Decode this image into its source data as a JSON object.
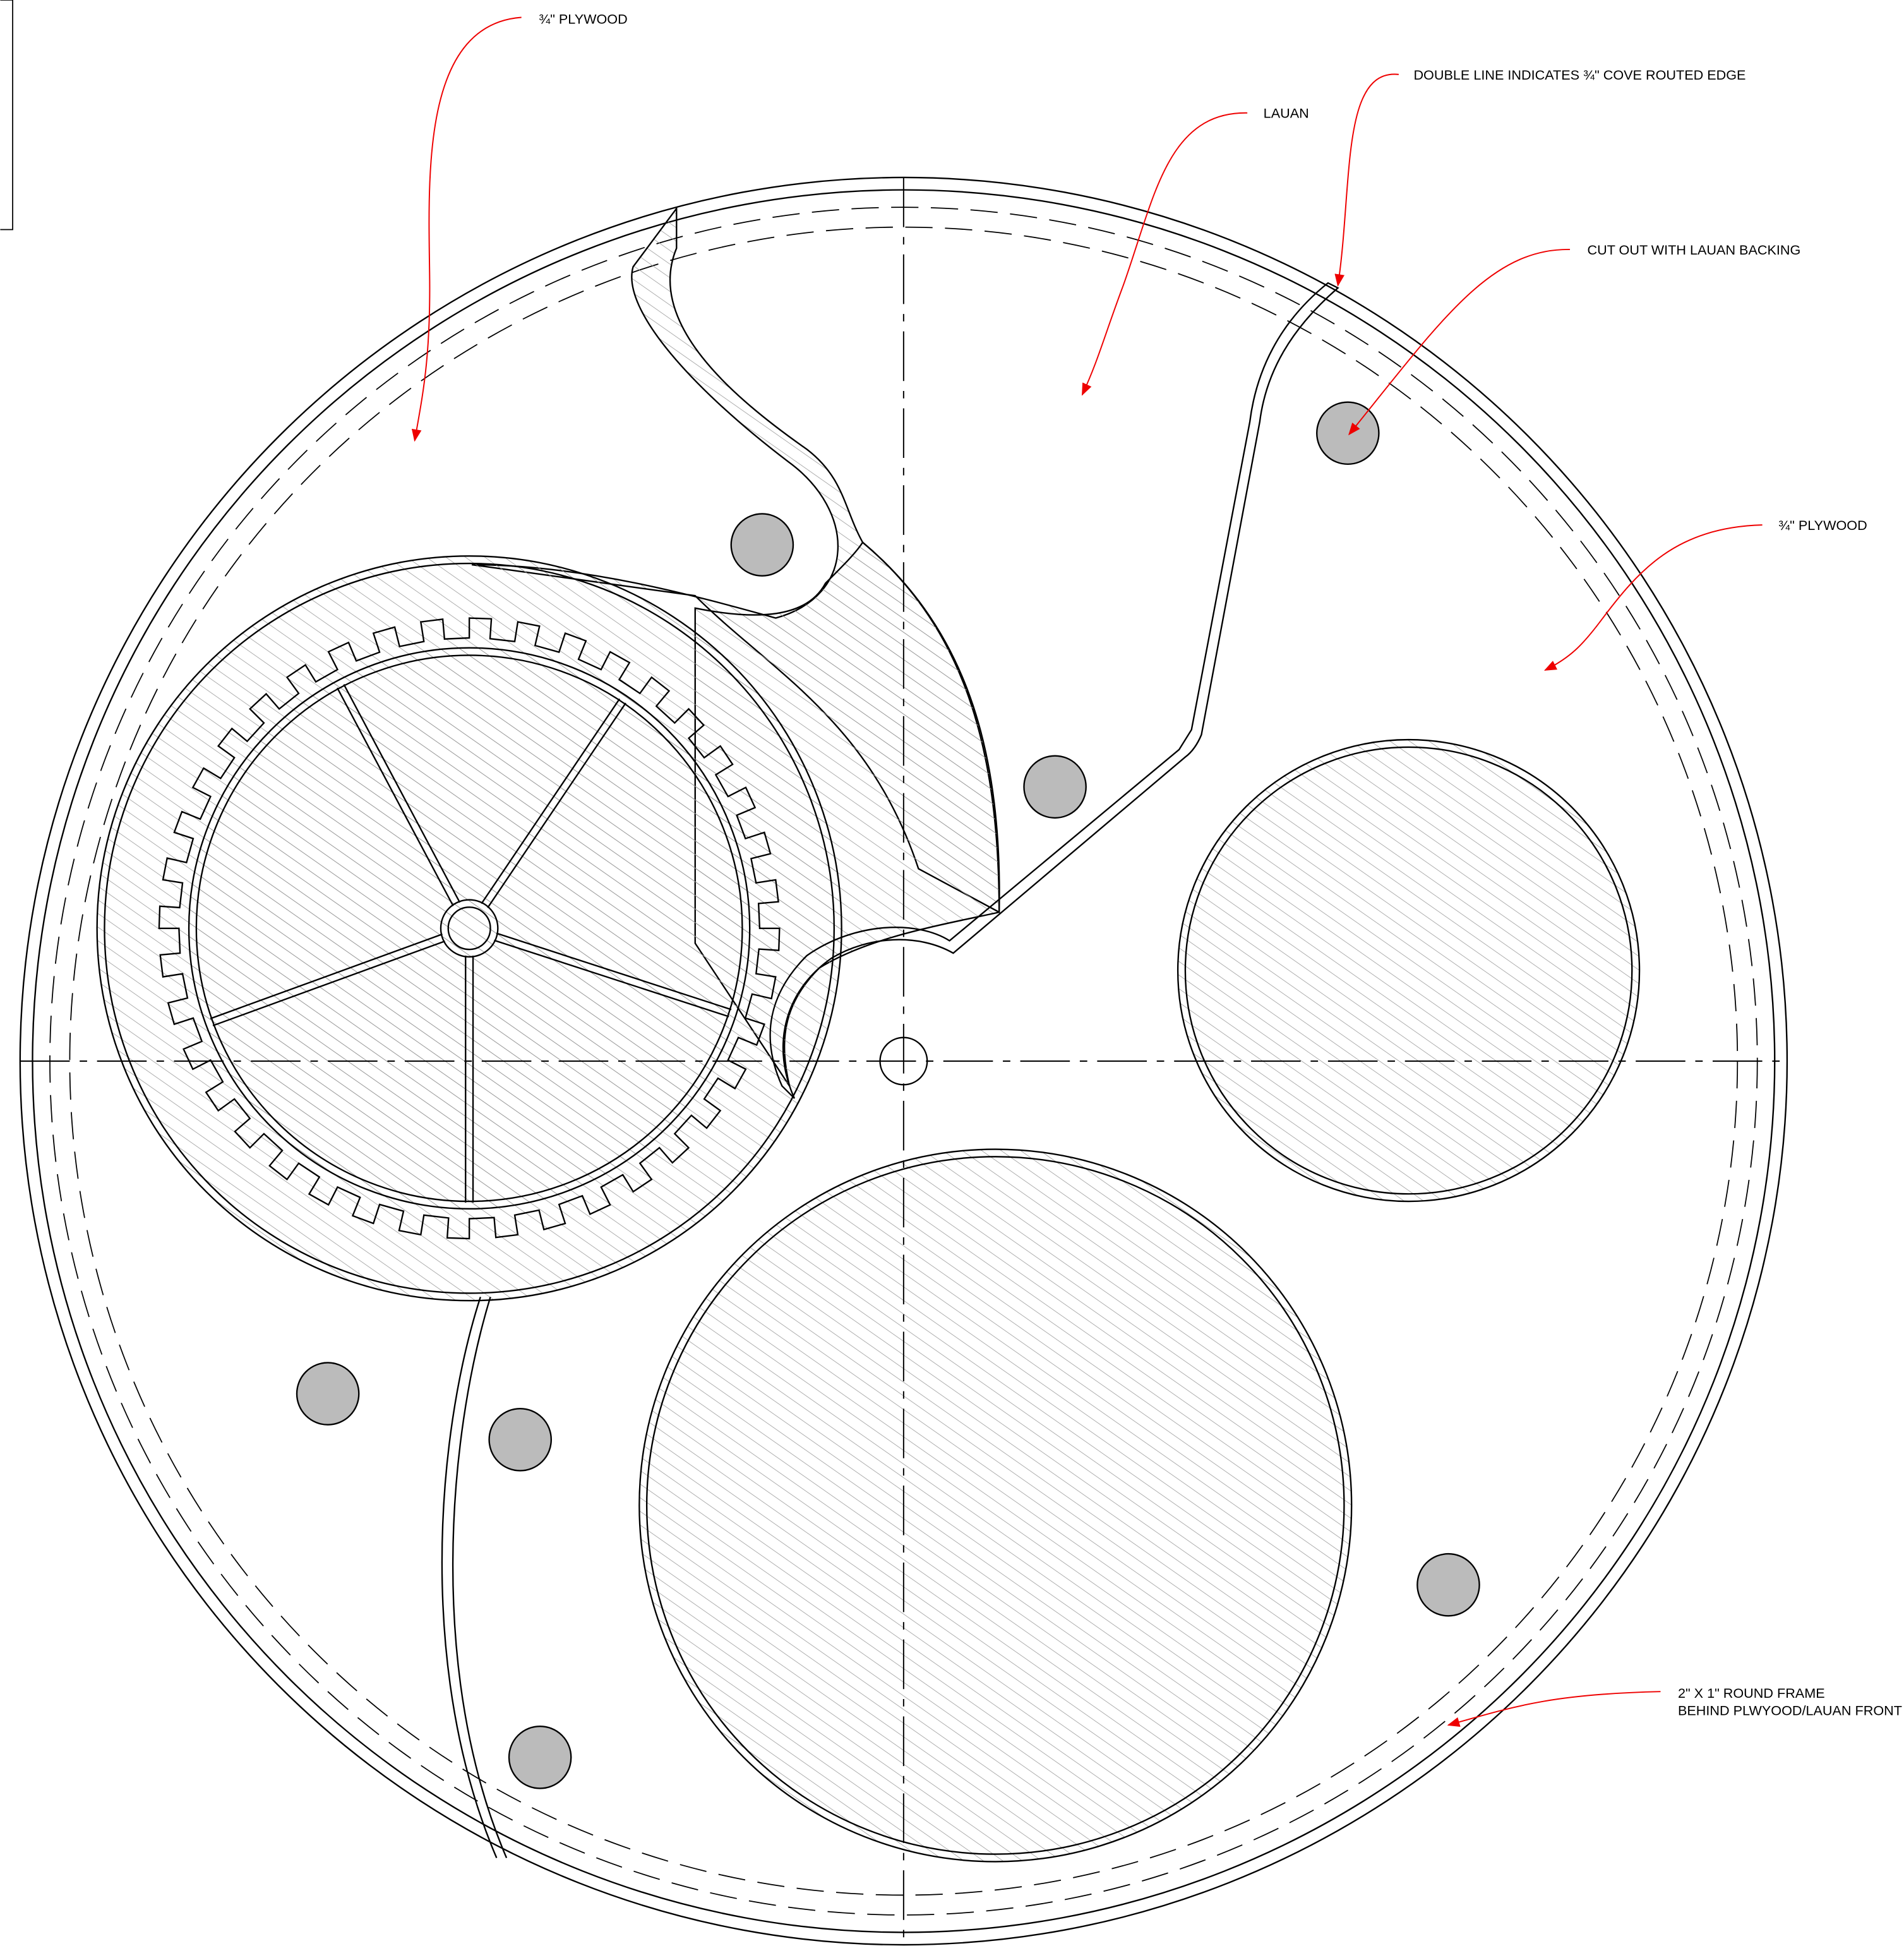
{
  "annotations": [
    {
      "text": "¾\" PLYWOOD"
    },
    {
      "text": "DOUBLE LINE INDICATES ¾\" COVE ROUTED EDGE"
    },
    {
      "text": "LAUAN"
    },
    {
      "text": "CUT OUT WITH LAUAN BACKING"
    },
    {
      "text": "¾\" PLYWOOD"
    },
    {
      "text": "2\" X 1\" ROUND FRAME"
    },
    {
      "text": "BEHIND PLWYOOD/LAUAN FRONT"
    }
  ]
}
